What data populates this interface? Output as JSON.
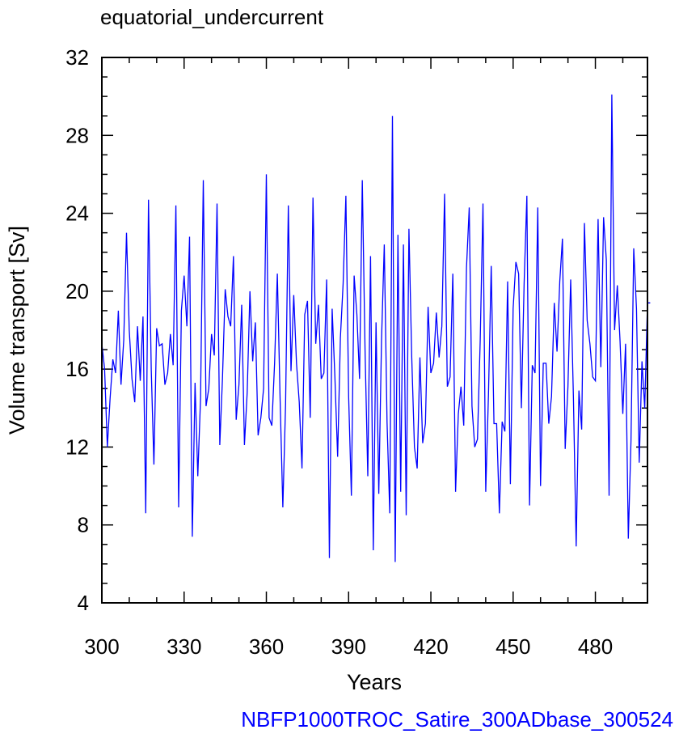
{
  "chart_data": {
    "type": "line",
    "title": "equatorial_undercurrent",
    "xlabel": "Years",
    "ylabel": "Volume transport [Sv]",
    "footer": "NBFP1000TROC_Satire_300ADbase_300524",
    "xlim": [
      300,
      499
    ],
    "ylim": [
      4,
      32
    ],
    "xticks": [
      300,
      330,
      360,
      390,
      420,
      450,
      480
    ],
    "yticks": [
      4,
      8,
      12,
      16,
      20,
      24,
      28,
      32
    ],
    "grid": false,
    "series": [
      {
        "color": "#0000ff",
        "x_start": 300,
        "x_step": 1,
        "values": [
          17.3,
          16.0,
          12.0,
          14.5,
          16.5,
          15.8,
          19.0,
          15.2,
          17.5,
          23.0,
          18.0,
          15.5,
          14.3,
          18.2,
          15.4,
          18.7,
          8.6,
          24.7,
          16.0,
          11.1,
          18.1,
          17.2,
          17.3,
          15.2,
          15.8,
          17.8,
          16.2,
          24.4,
          8.9,
          19.0,
          20.8,
          18.2,
          22.8,
          7.4,
          15.3,
          10.5,
          14.5,
          25.7,
          14.1,
          15.0,
          17.8,
          16.7,
          24.5,
          12.1,
          15.5,
          20.1,
          18.7,
          18.2,
          21.8,
          13.4,
          15.2,
          19.3,
          12.1,
          14.8,
          20.0,
          16.4,
          18.4,
          12.6,
          13.5,
          15.0,
          26.0,
          13.5,
          13.1,
          16.3,
          20.9,
          14.5,
          8.9,
          14.2,
          24.4,
          15.9,
          19.8,
          16.3,
          14.3,
          10.9,
          18.8,
          19.5,
          13.5,
          24.8,
          17.3,
          19.3,
          15.5,
          15.8,
          20.6,
          6.3,
          19.1,
          15.6,
          11.5,
          17.6,
          20.4,
          24.9,
          14.6,
          9.5,
          20.8,
          18.8,
          15.5,
          25.7,
          17.0,
          10.5,
          21.8,
          6.7,
          18.4,
          9.6,
          17.5,
          22.4,
          13.3,
          8.6,
          29.0,
          6.1,
          22.9,
          9.7,
          22.4,
          8.5,
          23.2,
          16.7,
          12.0,
          10.9,
          16.6,
          12.2,
          13.2,
          19.2,
          15.8,
          16.3,
          18.9,
          16.6,
          18.2,
          25.0,
          15.1,
          15.6,
          20.9,
          9.7,
          13.7,
          15.1,
          13.1,
          21.2,
          24.3,
          14.1,
          12.0,
          12.4,
          17.5,
          24.5,
          9.7,
          14.7,
          21.3,
          13.2,
          13.2,
          8.6,
          13.3,
          12.8,
          20.5,
          10.1,
          19.1,
          21.5,
          20.9,
          14.0,
          20.4,
          24.9,
          9.0,
          16.2,
          15.8,
          24.3,
          10.0,
          16.3,
          16.3,
          13.2,
          14.6,
          19.4,
          16.9,
          20.5,
          22.7,
          11.9,
          15.1,
          20.6,
          14.5,
          6.9,
          14.9,
          12.9,
          23.5,
          18.5,
          17.3,
          15.6,
          15.4,
          23.7,
          16.1,
          23.8,
          21.6,
          9.5,
          30.1,
          18.0,
          20.3,
          17.4,
          13.7,
          17.3,
          7.3,
          12.3,
          22.2,
          19.1,
          11.2,
          16.4,
          14.0,
          19.4,
          19.4
        ]
      }
    ]
  }
}
